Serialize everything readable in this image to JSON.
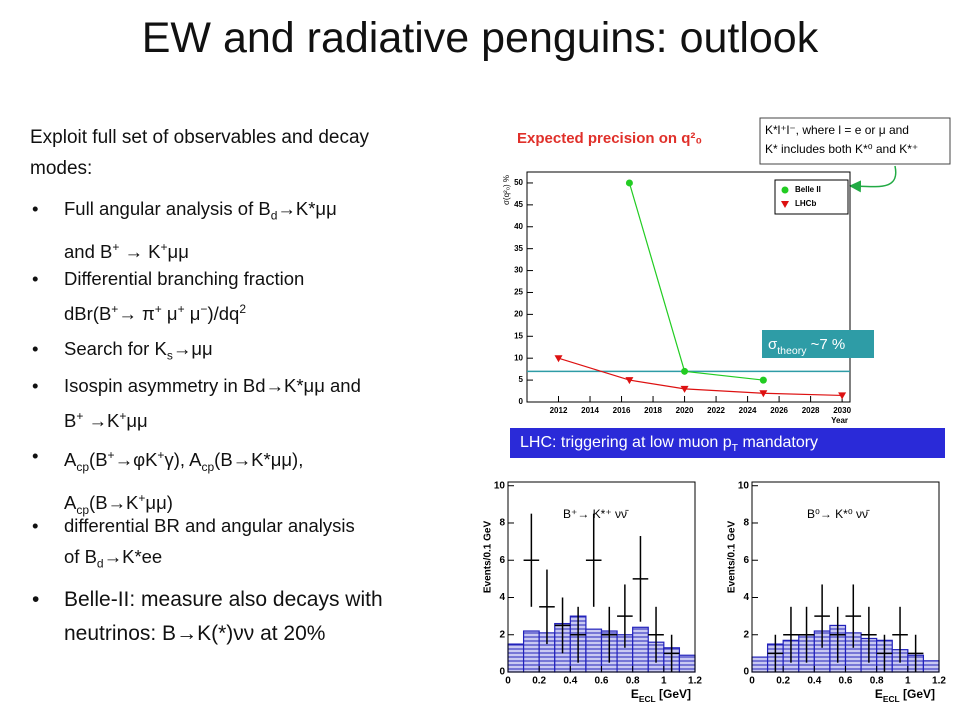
{
  "title": "EW and radiative penguins: outlook",
  "intro": [
    [
      {
        "text": "Exploit full set of observables and decay"
      }
    ],
    [
      {
        "text": "modes:"
      }
    ]
  ],
  "bullets": [
    {
      "lines": [
        [
          {
            "text": "Full angular analysis of B"
          },
          {
            "sub": "d"
          },
          {
            "text": "→K*μμ"
          }
        ],
        [
          {
            "text": "and B"
          },
          {
            "sup": "+"
          },
          {
            "text": " → K"
          },
          {
            "sup": "+"
          },
          {
            "text": "μμ"
          }
        ]
      ]
    },
    {
      "lines": [
        [
          {
            "text": "Differential branching fraction"
          }
        ],
        [
          {
            "text": " dBr(B"
          },
          {
            "sup": "+"
          },
          {
            "text": "→ π"
          },
          {
            "sup": "+"
          },
          {
            "text": " μ"
          },
          {
            "sup": "+"
          },
          {
            "text": " μ"
          },
          {
            "sup": "−"
          },
          {
            "text": ")/dq"
          },
          {
            "sup": "2"
          }
        ]
      ]
    },
    {
      "lines": [
        [
          {
            "text": "Search for K"
          },
          {
            "sub": "s"
          },
          {
            "text": "→μμ"
          }
        ]
      ]
    },
    {
      "lines": [
        [
          {
            "text": "Isospin asymmetry in Bd→K*μμ and"
          }
        ],
        [
          {
            "text": "B"
          },
          {
            "sup": "+"
          },
          {
            "text": " →K"
          },
          {
            "sup": "+"
          },
          {
            "text": "μμ"
          }
        ]
      ]
    },
    {
      "lines": [
        [
          {
            "text": "A"
          },
          {
            "sub": "cp"
          },
          {
            "text": "(B"
          },
          {
            "sup": "+"
          },
          {
            "text": "→φK"
          },
          {
            "sup": "+"
          },
          {
            "text": "γ), A"
          },
          {
            "sub": "cp"
          },
          {
            "text": "(B→K*μμ),"
          }
        ],
        [
          {
            "text": "A"
          },
          {
            "sub": "cp"
          },
          {
            "text": "(B→K"
          },
          {
            "sup": "+"
          },
          {
            "text": "μμ)"
          }
        ]
      ]
    },
    {
      "lines": [
        [
          {
            "text": "differential BR and angular analysis"
          }
        ],
        [
          {
            "text": "of B"
          },
          {
            "sub": "d"
          },
          {
            "text": "→K*ee"
          }
        ]
      ]
    },
    {
      "lines": [
        [
          {
            "text": "Belle-II: measure also decays with"
          }
        ],
        [
          {
            "text": "neutrinos: B→K(*)νν at 20%"
          }
        ]
      ]
    }
  ],
  "banner": [
    {
      "text": "LHC: triggering at low muon p"
    },
    {
      "sub": "T"
    },
    {
      "text": " mandatory"
    }
  ],
  "chart_data": [
    {
      "type": "line",
      "title": "Expected precision on q²₀",
      "annotation": [
        "K*l⁺l⁻, where l = e or μ and",
        "K* includes both K*⁰ and K*⁺"
      ],
      "y_label": "σ(q²₀) %",
      "x_label": "Year",
      "xlim": [
        2010,
        2030.5
      ],
      "xticks": [
        2012,
        2014,
        2016,
        2018,
        2020,
        2022,
        2024,
        2026,
        2028,
        2030
      ],
      "ylim": [
        0,
        52.5
      ],
      "yticks": [
        0,
        5,
        10,
        15,
        20,
        25,
        30,
        35,
        40,
        45,
        50
      ],
      "series": [
        {
          "name": "Belle II",
          "color": "#22cc22",
          "marker": "circle",
          "x": [
            2016.5,
            2020,
            2025
          ],
          "values": [
            50,
            7,
            5
          ]
        },
        {
          "name": "LHCb",
          "color": "#dd1111",
          "marker": "triangle",
          "x": [
            2012,
            2016.5,
            2020,
            2025,
            2030
          ],
          "values": [
            10,
            5,
            3,
            2,
            1.5
          ]
        }
      ],
      "theory_line": {
        "value": 7,
        "color": "#2e9ca6",
        "label": [
          {
            "text": "σ"
          },
          {
            "sub": "theory"
          },
          {
            "text": " ~7 %"
          }
        ]
      }
    },
    {
      "type": "histogram",
      "label": "B⁺→ K*⁺ νν̄",
      "y_label": "Events/0.1 GeV",
      "x_label": [
        {
          "text": "E"
        },
        {
          "sub": "ECL"
        },
        {
          "text": " [GeV]"
        }
      ],
      "bins": [
        0,
        0.1,
        0.2,
        0.3,
        0.4,
        0.5,
        0.6,
        0.7,
        0.8,
        0.9,
        1,
        1.1,
        1.2
      ],
      "values": [
        1.5,
        2.2,
        2.1,
        2.6,
        3,
        2.3,
        2.2,
        2,
        2.4,
        1.6,
        1.3,
        0.9
      ],
      "data": [
        null,
        6,
        3.5,
        2.5,
        2,
        6,
        2,
        3,
        5,
        2,
        1,
        null
      ],
      "errors": [
        null,
        2.5,
        2,
        1.5,
        1.5,
        2.5,
        1.5,
        1.7,
        2.3,
        1.5,
        1,
        null
      ],
      "color": "#2222bb",
      "xlim": [
        0,
        1.2
      ],
      "xticks": [
        0,
        0.2,
        0.4,
        0.6,
        0.8,
        1,
        1.2
      ],
      "ylim": [
        0,
        10.2
      ],
      "yticks": [
        0,
        2,
        4,
        6,
        8,
        10
      ]
    },
    {
      "type": "histogram",
      "label": "B⁰→ K*⁰ νν̄",
      "y_label": "Events/0.1 GeV",
      "x_label": [
        {
          "text": "E"
        },
        {
          "sub": "ECL"
        },
        {
          "text": " [GeV]"
        }
      ],
      "bins": [
        0,
        0.1,
        0.2,
        0.3,
        0.4,
        0.5,
        0.6,
        0.7,
        0.8,
        0.9,
        1,
        1.1,
        1.2
      ],
      "values": [
        0.8,
        1.5,
        1.7,
        2,
        2.2,
        2.5,
        2.1,
        1.8,
        1.7,
        1.2,
        0.9,
        0.6
      ],
      "data": [
        null,
        1,
        2,
        2,
        3,
        2,
        3,
        2,
        1,
        2,
        1,
        null
      ],
      "errors": [
        null,
        1,
        1.5,
        1.5,
        1.7,
        1.5,
        1.7,
        1.5,
        1,
        1.5,
        1,
        null
      ],
      "color": "#2222bb",
      "xlim": [
        0,
        1.2
      ],
      "xticks": [
        0,
        0.2,
        0.4,
        0.6,
        0.8,
        1,
        1.2
      ],
      "ylim": [
        0,
        10.2
      ],
      "yticks": [
        0,
        2,
        4,
        6,
        8,
        10
      ]
    }
  ]
}
